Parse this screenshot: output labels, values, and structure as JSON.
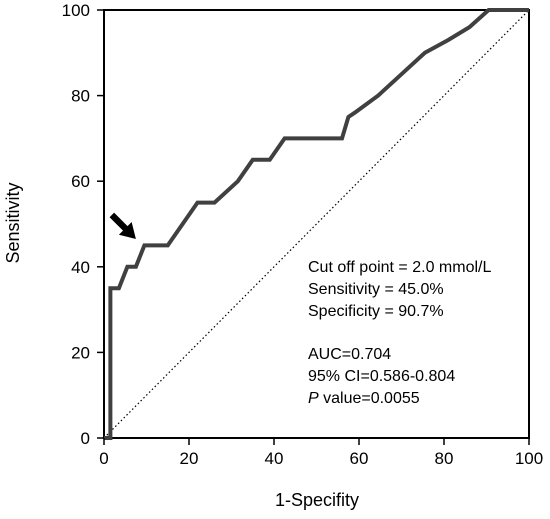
{
  "chart_data": {
    "type": "line",
    "title": "",
    "xlabel": "1-Specifity",
    "ylabel": "Sensitivity",
    "xlim": [
      0,
      100
    ],
    "ylim": [
      0,
      100
    ],
    "xticks": [
      "0",
      "20",
      "40",
      "60",
      "80",
      "100"
    ],
    "yticks": [
      "0",
      "20",
      "40",
      "60",
      "80",
      "100"
    ],
    "grid": false,
    "legend": "none",
    "series": [
      {
        "type": "step-line",
        "color": "#404040",
        "points": [
          [
            0,
            0
          ],
          [
            1.5,
            0
          ],
          [
            1.5,
            35
          ],
          [
            3.5,
            35
          ],
          [
            5.5,
            40
          ],
          [
            7.5,
            40
          ],
          [
            9.5,
            45
          ],
          [
            15,
            45
          ],
          [
            22,
            55
          ],
          [
            26,
            55
          ],
          [
            31.5,
            60
          ],
          [
            35,
            65
          ],
          [
            39,
            65
          ],
          [
            42.5,
            70
          ],
          [
            56,
            70
          ],
          [
            57.5,
            75
          ],
          [
            59,
            76
          ],
          [
            64.5,
            80
          ],
          [
            70,
            85
          ],
          [
            75.5,
            90
          ],
          [
            81,
            93
          ],
          [
            86,
            96
          ],
          [
            90.5,
            100
          ],
          [
            100,
            100
          ]
        ]
      },
      {
        "type": "reference-diagonal",
        "style": "dotted",
        "color": "#000000",
        "points": [
          [
            0,
            0
          ],
          [
            100,
            100
          ]
        ]
      }
    ],
    "annotations": {
      "arrow": {
        "points_to": [
          7.5,
          46.5
        ],
        "color": "#000000"
      },
      "cutoff_lines": [
        "Cut off point = 2.0 mmol/L",
        "Sensitivity = 45.0%",
        "Specificity = 90.7%"
      ],
      "stats": {
        "auc": "AUC=0.704",
        "ci": "95% CI=0.586-0.804",
        "p_italic": "P",
        "p_rest": " value=0.0055"
      }
    }
  }
}
